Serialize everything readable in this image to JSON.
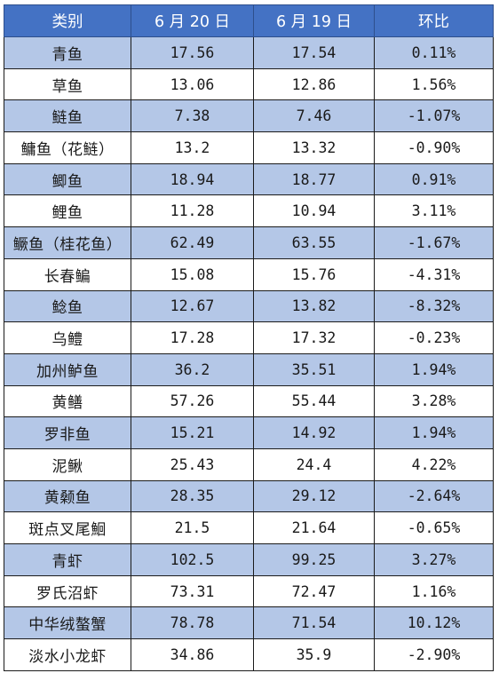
{
  "headers": [
    "类别",
    "6 月 20 日",
    "6 月 19 日",
    "环比"
  ],
  "rows": [
    {
      "name": "青鱼",
      "jun20": "17.56",
      "jun19": "17.54",
      "change": "0.11%"
    },
    {
      "name": "草鱼",
      "jun20": "13.06",
      "jun19": "12.86",
      "change": "1.56%"
    },
    {
      "name": "鲢鱼",
      "jun20": "7.38",
      "jun19": "7.46",
      "change": "-1.07%"
    },
    {
      "name": "鳙鱼（花鲢）",
      "jun20": "13.2",
      "jun19": "13.32",
      "change": "-0.90%"
    },
    {
      "name": "鲫鱼",
      "jun20": "18.94",
      "jun19": "18.77",
      "change": "0.91%"
    },
    {
      "name": "鲤鱼",
      "jun20": "11.28",
      "jun19": "10.94",
      "change": "3.11%"
    },
    {
      "name": "鳜鱼（桂花鱼）",
      "jun20": "62.49",
      "jun19": "63.55",
      "change": "-1.67%"
    },
    {
      "name": "长春鳊",
      "jun20": "15.08",
      "jun19": "15.76",
      "change": "-4.31%"
    },
    {
      "name": "鲶鱼",
      "jun20": "12.67",
      "jun19": "13.82",
      "change": "-8.32%"
    },
    {
      "name": "乌鳢",
      "jun20": "17.28",
      "jun19": "17.32",
      "change": "-0.23%"
    },
    {
      "name": "加州鲈鱼",
      "jun20": "36.2",
      "jun19": "35.51",
      "change": "1.94%"
    },
    {
      "name": "黄鳝",
      "jun20": "57.26",
      "jun19": "55.44",
      "change": "3.28%"
    },
    {
      "name": "罗非鱼",
      "jun20": "15.21",
      "jun19": "14.92",
      "change": "1.94%"
    },
    {
      "name": "泥鳅",
      "jun20": "25.43",
      "jun19": "24.4",
      "change": "4.22%"
    },
    {
      "name": "黄颡鱼",
      "jun20": "28.35",
      "jun19": "29.12",
      "change": "-2.64%"
    },
    {
      "name": "斑点叉尾鮰",
      "jun20": "21.5",
      "jun19": "21.64",
      "change": "-0.65%"
    },
    {
      "name": "青虾",
      "jun20": "102.5",
      "jun19": "99.25",
      "change": "3.27%"
    },
    {
      "name": "罗氏沼虾",
      "jun20": "73.31",
      "jun19": "72.47",
      "change": "1.16%"
    },
    {
      "name": "中华绒螯蟹",
      "jun20": "78.78",
      "jun19": "71.54",
      "change": "10.12%"
    },
    {
      "name": "淡水小龙虾",
      "jun20": "34.86",
      "jun19": "35.9",
      "change": "-2.90%"
    }
  ]
}
